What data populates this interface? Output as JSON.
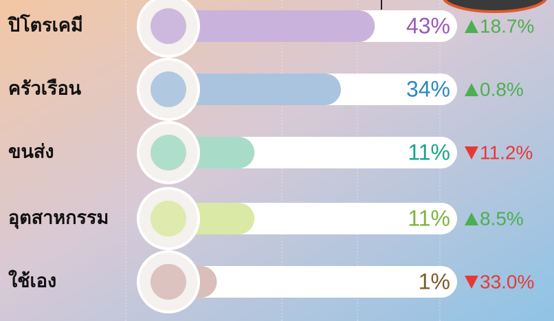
{
  "chart_data": {
    "type": "bar",
    "categories": [
      "ปิโตรเคมี",
      "ครัวเรือน",
      "ขนส่ง",
      "อุตสาหกรรม",
      "ใช้เอง"
    ],
    "values": [
      43,
      34,
      11,
      11,
      1
    ],
    "value_labels": [
      "43%",
      "34%",
      "11%",
      "11%",
      "1%"
    ],
    "colors": [
      "#c9b3dc",
      "#aac3df",
      "#a9dcc8",
      "#dbe9a6",
      "#d9beba"
    ],
    "label_colors": [
      "#9b59b6",
      "#2e86c1",
      "#17a589",
      "#7cb342",
      "#7b5a2b"
    ],
    "changes": [
      18.7,
      0.8,
      -11.2,
      8.5,
      -33.0
    ],
    "change_labels": [
      "18.7%",
      "0.8%",
      "11.2%",
      "8.5%",
      "33.0%"
    ],
    "up_color": "#4caf50",
    "down_color": "#e53935"
  }
}
